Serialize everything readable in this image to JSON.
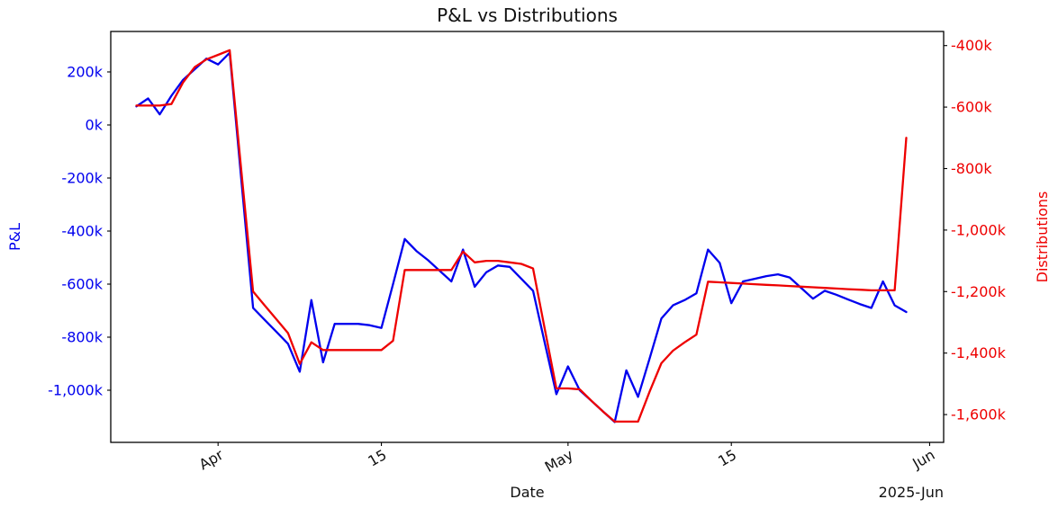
{
  "chart_data": {
    "type": "line",
    "title": "P&L vs Distributions",
    "xlabel": "Date",
    "x_axis": {
      "unit": "date",
      "offset_label": "2025-Jun",
      "tick_labels": [
        "Apr",
        "15",
        "May",
        "15",
        "Jun"
      ],
      "tick_dates": [
        "2025-04-01",
        "2025-04-15",
        "2025-05-01",
        "2025-05-15",
        "2025-06-01"
      ],
      "tick_day_indices": [
        7,
        21,
        37,
        51,
        68
      ],
      "domain_day_index": [
        -2.2,
        69.2
      ],
      "tick_rotation_deg": 30
    },
    "y_left": {
      "label": "P&L",
      "color": "#0000ee",
      "tick_values_k": [
        200,
        0,
        -200,
        -400,
        -600,
        -800,
        -1000
      ],
      "tick_labels": [
        "200k",
        "0k",
        "-200k",
        "-400k",
        "-600k",
        "-800k",
        "-1,000k"
      ],
      "domain_k": [
        -1196.6,
        352.5
      ]
    },
    "y_right": {
      "label": "Distributions",
      "color": "#ee0000",
      "tick_values_k": [
        -400,
        -600,
        -800,
        -1000,
        -1200,
        -1400,
        -1600
      ],
      "tick_labels": [
        "-400k",
        "-600k",
        "-800k",
        "-1,000k",
        "-1,200k",
        "-1,400k",
        "-1,600k"
      ],
      "domain_k": [
        -1690.4,
        -354.1
      ]
    },
    "dates": [
      "2025-03-25",
      "2025-03-26",
      "2025-03-27",
      "2025-03-28",
      "2025-03-29",
      "2025-03-30",
      "2025-03-31",
      "2025-04-01",
      "2025-04-02",
      "2025-04-03",
      "2025-04-04",
      "2025-04-05",
      "2025-04-06",
      "2025-04-07",
      "2025-04-08",
      "2025-04-09",
      "2025-04-10",
      "2025-04-11",
      "2025-04-12",
      "2025-04-13",
      "2025-04-14",
      "2025-04-15",
      "2025-04-16",
      "2025-04-17",
      "2025-04-18",
      "2025-04-19",
      "2025-04-20",
      "2025-04-21",
      "2025-04-22",
      "2025-04-23",
      "2025-04-24",
      "2025-04-25",
      "2025-04-26",
      "2025-04-27",
      "2025-04-28",
      "2025-04-29",
      "2025-04-30",
      "2025-05-01",
      "2025-05-02",
      "2025-05-03",
      "2025-05-04",
      "2025-05-05",
      "2025-05-06",
      "2025-05-07",
      "2025-05-08",
      "2025-05-09",
      "2025-05-10",
      "2025-05-11",
      "2025-05-12",
      "2025-05-13",
      "2025-05-14",
      "2025-05-15",
      "2025-05-16",
      "2025-05-17",
      "2025-05-18",
      "2025-05-19",
      "2025-05-20",
      "2025-05-21",
      "2025-05-22",
      "2025-05-23",
      "2025-05-24",
      "2025-05-25",
      "2025-05-26",
      "2025-05-27",
      "2025-05-28",
      "2025-05-29",
      "2025-05-30"
    ],
    "series": [
      {
        "name": "P&L",
        "axis": "left",
        "color": "#0000ee",
        "values_k": [
          70,
          100,
          40,
          110,
          170,
          210,
          250,
          228,
          272,
          -210,
          -690,
          -735,
          -780,
          -825,
          -930,
          -660,
          -895,
          -750,
          -750,
          -750,
          -755,
          -765,
          -600,
          -430,
          -475,
          -510,
          -550,
          -590,
          -470,
          -610,
          -555,
          -530,
          -535,
          -580,
          -625,
          -820,
          -1015,
          -910,
          -1000,
          -1040,
          -1080,
          -1120,
          -925,
          -1025,
          -880,
          -730,
          -680,
          -660,
          -635,
          -470,
          -520,
          -672,
          -590,
          -580,
          -570,
          -563,
          -575,
          -615,
          -655,
          -625,
          -640,
          -658,
          -675,
          -690,
          -590,
          -680,
          -705
        ]
      },
      {
        "name": "Distributions",
        "axis": "right",
        "color": "#ee0000",
        "values_k": [
          -595,
          -595,
          -595,
          -590,
          -520,
          -470,
          -445,
          -430,
          -415,
          -810,
          -1200,
          -1245,
          -1290,
          -1335,
          -1435,
          -1365,
          -1390,
          -1390,
          -1390,
          -1390,
          -1390,
          -1390,
          -1360,
          -1130,
          -1130,
          -1130,
          -1130,
          -1130,
          -1070,
          -1105,
          -1100,
          -1100,
          -1105,
          -1110,
          -1125,
          -1320,
          -1515,
          -1515,
          -1518,
          -1555,
          -1590,
          -1623,
          -1623,
          -1623,
          -1525,
          -1433,
          -1392,
          -1365,
          -1340,
          -1168,
          -1170,
          -1172,
          -1174,
          -1176,
          -1178,
          -1180,
          -1182,
          -1184,
          -1186,
          -1188,
          -1190,
          -1192,
          -1194,
          -1196,
          -1196,
          -1196,
          -700
        ]
      }
    ]
  }
}
